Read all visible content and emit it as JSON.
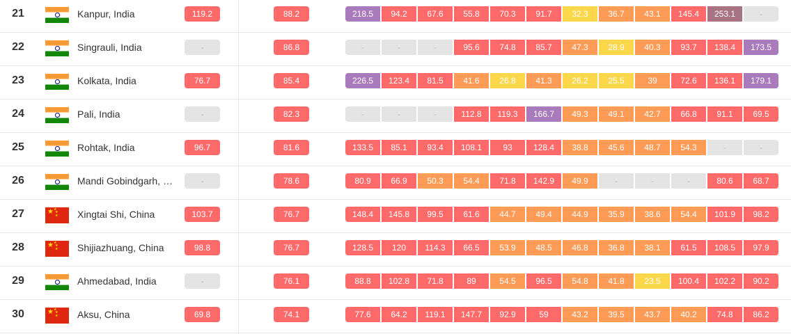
{
  "colors": {
    "good": "#fdd74b",
    "moderate": "#fe9b57",
    "unhealthy_sensitive": "#fe6a69",
    "very_unhealthy": "#a97abc",
    "hazardous": "#a87383",
    "no_data": "#e4e4e4"
  },
  "rows": [
    {
      "rank": "21",
      "flag": "in",
      "city": "Kanpur, India",
      "avg_2024": "119.2",
      "avg_2023": "88.2",
      "months": [
        "218.5",
        "94.2",
        "67.6",
        "55.8",
        "70.3",
        "91.7",
        "32.3",
        "36.7",
        "43.1",
        "145.4",
        "253.1",
        "-"
      ]
    },
    {
      "rank": "22",
      "flag": "in",
      "city": "Singrauli, India",
      "avg_2024": "-",
      "avg_2023": "86.8",
      "months": [
        "-",
        "-",
        "-",
        "95.6",
        "74.8",
        "85.7",
        "47.3",
        "28.9",
        "40.3",
        "93.7",
        "138.4",
        "173.5"
      ]
    },
    {
      "rank": "23",
      "flag": "in",
      "city": "Kolkata, India",
      "avg_2024": "76.7",
      "avg_2023": "85.4",
      "months": [
        "226.5",
        "123.4",
        "81.5",
        "41.6",
        "26.8",
        "41.3",
        "26.2",
        "25.5",
        "39",
        "72.6",
        "136.1",
        "179.1"
      ]
    },
    {
      "rank": "24",
      "flag": "in",
      "city": "Pali, India",
      "avg_2024": "-",
      "avg_2023": "82.3",
      "months": [
        "-",
        "-",
        "-",
        "112.8",
        "119.3",
        "166.7",
        "49.3",
        "49.1",
        "42.7",
        "66.8",
        "91.1",
        "69.5"
      ]
    },
    {
      "rank": "25",
      "flag": "in",
      "city": "Rohtak, India",
      "avg_2024": "96.7",
      "avg_2023": "81.6",
      "months": [
        "133.5",
        "85.1",
        "93.4",
        "108.1",
        "93",
        "128.4",
        "38.8",
        "45.6",
        "48.7",
        "54.3",
        "-",
        "-"
      ]
    },
    {
      "rank": "26",
      "flag": "in",
      "city": "Mandi Gobindgarh, …",
      "avg_2024": "-",
      "avg_2023": "78.6",
      "months": [
        "80.9",
        "66.9",
        "50.3",
        "54.4",
        "71.8",
        "142.9",
        "49.9",
        "-",
        "-",
        "-",
        "80.6",
        "68.7"
      ]
    },
    {
      "rank": "27",
      "flag": "cn",
      "city": "Xingtai Shi, China",
      "avg_2024": "103.7",
      "avg_2023": "76.7",
      "months": [
        "148.4",
        "145.8",
        "99.5",
        "61.6",
        "44.7",
        "49.4",
        "44.9",
        "35.9",
        "38.6",
        "54.4",
        "101.9",
        "98.2"
      ]
    },
    {
      "rank": "28",
      "flag": "cn",
      "city": "Shijiazhuang, China",
      "avg_2024": "98.8",
      "avg_2023": "76.7",
      "months": [
        "128.5",
        "120",
        "114.3",
        "66.5",
        "53.9",
        "48.5",
        "46.8",
        "36.8",
        "38.1",
        "61.5",
        "108.5",
        "97.9"
      ]
    },
    {
      "rank": "29",
      "flag": "in",
      "city": "Ahmedabad, India",
      "avg_2024": "-",
      "avg_2023": "76.1",
      "months": [
        "88.8",
        "102.8",
        "71.8",
        "89",
        "54.5",
        "96.5",
        "54.8",
        "41.8",
        "23.5",
        "100.4",
        "102.2",
        "90.2"
      ]
    },
    {
      "rank": "30",
      "flag": "cn",
      "city": "Aksu, China",
      "avg_2024": "69.8",
      "avg_2023": "74.1",
      "months": [
        "77.6",
        "64.2",
        "119.1",
        "147.7",
        "92.9",
        "59",
        "43.2",
        "39.5",
        "43.7",
        "40.2",
        "74.8",
        "86.2"
      ]
    }
  ]
}
